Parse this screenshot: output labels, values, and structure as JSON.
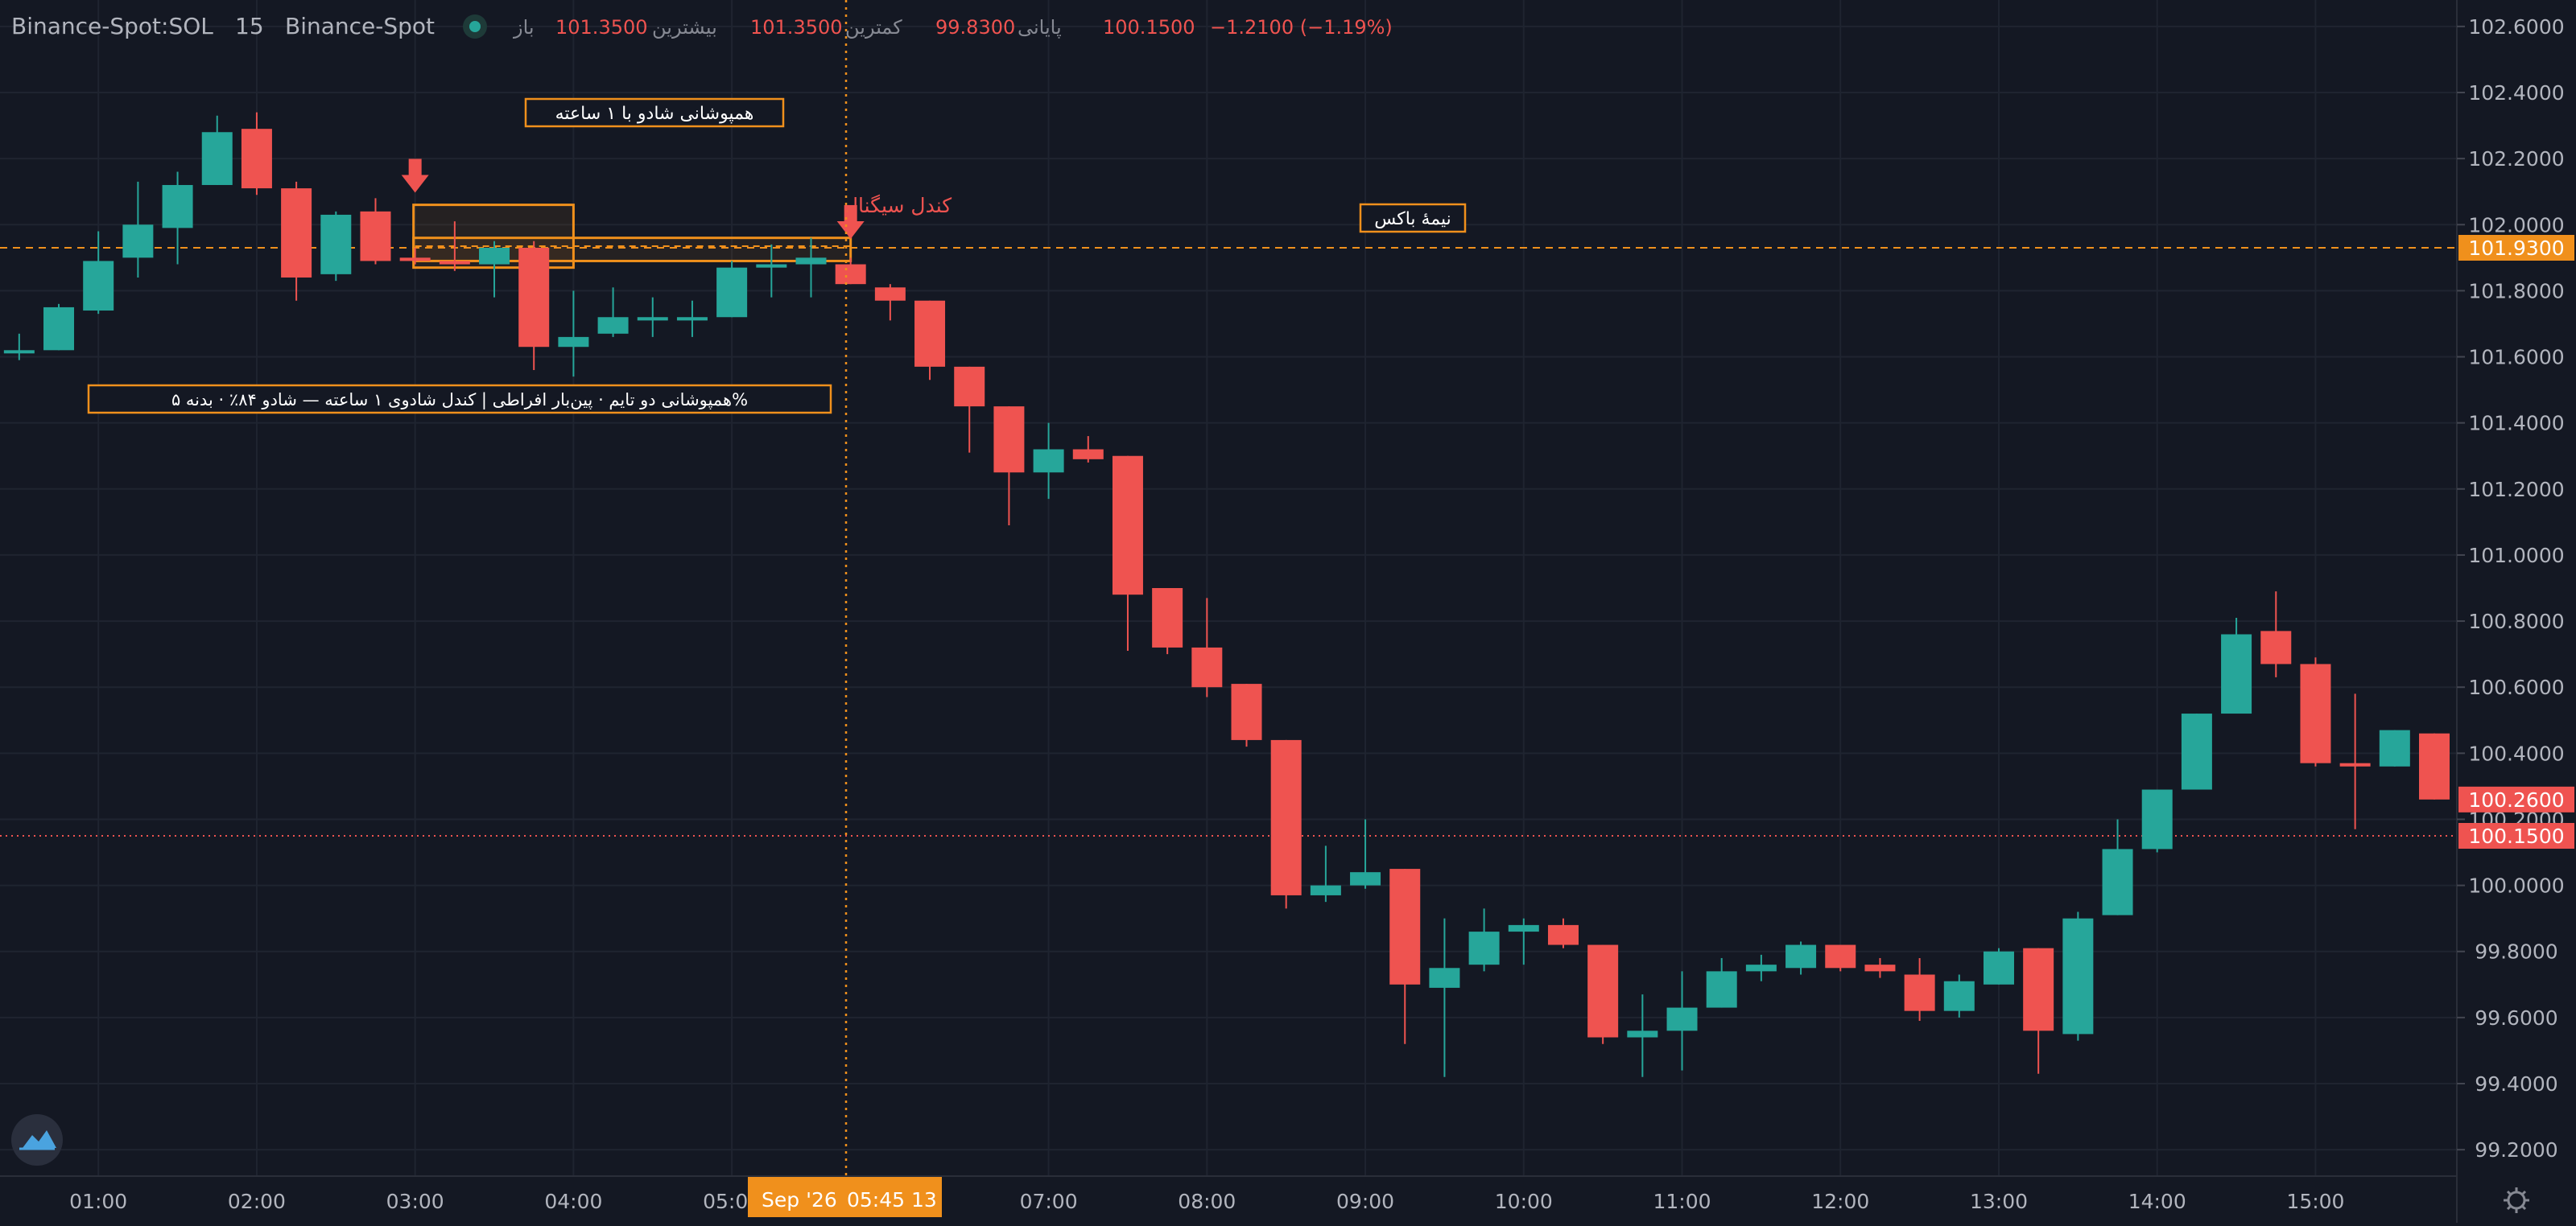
{
  "header": {
    "symbol": "Binance-Spot:SOL",
    "interval": "15",
    "exchange": "Binance-Spot",
    "open_label": "باز",
    "open_value": "101.3500",
    "high_label": "بیشترین",
    "high_value": "101.3500",
    "low_label": "کمترین",
    "low_value": "99.8300",
    "close_label": "پایانی",
    "close_value": "100.1500",
    "change": "−1.2100 (−1.19%)"
  },
  "colors": {
    "background": "#141823",
    "grid": "#1f2430",
    "text": "#b2b5be",
    "up": "#26a69a",
    "down": "#ef5350",
    "orange": "#f0901c",
    "annotation_text": "#ffffff"
  },
  "icons": {
    "logo": "cloud-logo-icon",
    "settings": "gear-icon",
    "signal_arrow": "down-arrow-icon",
    "status": "status-dot-icon"
  },
  "crosshair": {
    "time_label_date": "Sep '26",
    "time_label_time": "05:45 13",
    "time_position_hours": 5.75
  },
  "chart_data": {
    "type": "candlestick",
    "x_unit": "hours",
    "xlim": [
      0.45,
      15.75
    ],
    "ylim": [
      99.12,
      102.68
    ],
    "x_ticks": [
      {
        "label": "01:00",
        "x": 1
      },
      {
        "label": "02:00",
        "x": 2
      },
      {
        "label": "03:00",
        "x": 3
      },
      {
        "label": "04:00",
        "x": 4
      },
      {
        "label": "05:00",
        "x": 5
      },
      {
        "label": "07:00",
        "x": 7
      },
      {
        "label": "08:00",
        "x": 8
      },
      {
        "label": "09:00",
        "x": 9
      },
      {
        "label": "10:00",
        "x": 10
      },
      {
        "label": "11:00",
        "x": 11
      },
      {
        "label": "12:00",
        "x": 12
      },
      {
        "label": "13:00",
        "x": 13
      },
      {
        "label": "14:00",
        "x": 14
      },
      {
        "label": "15:00",
        "x": 15
      }
    ],
    "y_ticks": [
      "102.6000",
      "102.4000",
      "102.2000",
      "102.0000",
      "101.8000",
      "101.6000",
      "101.4000",
      "101.2000",
      "101.0000",
      "100.8000",
      "100.6000",
      "100.4000",
      "100.2000",
      "100.0000",
      "99.8000",
      "99.6000",
      "99.4000",
      "99.2000"
    ],
    "price_labels": [
      {
        "value": 101.93,
        "text": "101.9300",
        "color": "#f0901c",
        "line": "dashed"
      },
      {
        "value": 100.26,
        "text": "100.2600",
        "color": "#ef5350",
        "line": "none"
      },
      {
        "value": 100.15,
        "text": "100.1500",
        "color": "#ef5350",
        "line": "dotted"
      }
    ],
    "candles": [
      {
        "t": 0.5,
        "o": 101.62,
        "h": 101.67,
        "l": 101.59,
        "c": 101.62
      },
      {
        "t": 0.75,
        "o": 101.62,
        "h": 101.76,
        "l": 101.62,
        "c": 101.75
      },
      {
        "t": 1.0,
        "o": 101.74,
        "h": 101.98,
        "l": 101.73,
        "c": 101.89
      },
      {
        "t": 1.25,
        "o": 101.9,
        "h": 102.13,
        "l": 101.84,
        "c": 102.0
      },
      {
        "t": 1.5,
        "o": 101.99,
        "h": 102.16,
        "l": 101.88,
        "c": 102.12
      },
      {
        "t": 1.75,
        "o": 102.12,
        "h": 102.33,
        "l": 102.12,
        "c": 102.28
      },
      {
        "t": 2.0,
        "o": 102.29,
        "h": 102.34,
        "l": 102.09,
        "c": 102.11
      },
      {
        "t": 2.25,
        "o": 102.11,
        "h": 102.13,
        "l": 101.77,
        "c": 101.84
      },
      {
        "t": 2.5,
        "o": 101.85,
        "h": 102.04,
        "l": 101.83,
        "c": 102.03
      },
      {
        "t": 2.75,
        "o": 102.04,
        "h": 102.08,
        "l": 101.88,
        "c": 101.89
      },
      {
        "t": 3.0,
        "o": 101.9,
        "h": 101.93,
        "l": 101.88,
        "c": 101.89
      },
      {
        "t": 3.25,
        "o": 101.89,
        "h": 102.01,
        "l": 101.86,
        "c": 101.88
      },
      {
        "t": 3.5,
        "o": 101.88,
        "h": 101.95,
        "l": 101.78,
        "c": 101.93
      },
      {
        "t": 3.75,
        "o": 101.93,
        "h": 101.95,
        "l": 101.56,
        "c": 101.63
      },
      {
        "t": 4.0,
        "o": 101.63,
        "h": 101.8,
        "l": 101.54,
        "c": 101.66
      },
      {
        "t": 4.25,
        "o": 101.67,
        "h": 101.81,
        "l": 101.66,
        "c": 101.72
      },
      {
        "t": 4.5,
        "o": 101.71,
        "h": 101.78,
        "l": 101.66,
        "c": 101.72
      },
      {
        "t": 4.75,
        "o": 101.71,
        "h": 101.77,
        "l": 101.66,
        "c": 101.72
      },
      {
        "t": 5.0,
        "o": 101.72,
        "h": 101.89,
        "l": 101.72,
        "c": 101.87
      },
      {
        "t": 5.25,
        "o": 101.87,
        "h": 101.94,
        "l": 101.78,
        "c": 101.88
      },
      {
        "t": 5.5,
        "o": 101.88,
        "h": 101.96,
        "l": 101.78,
        "c": 101.9
      },
      {
        "t": 5.75,
        "o": 101.88,
        "h": 101.9,
        "l": 101.82,
        "c": 101.82
      },
      {
        "t": 6.0,
        "o": 101.81,
        "h": 101.82,
        "l": 101.71,
        "c": 101.77
      },
      {
        "t": 6.25,
        "o": 101.77,
        "h": 101.77,
        "l": 101.53,
        "c": 101.57
      },
      {
        "t": 6.5,
        "o": 101.57,
        "h": 101.57,
        "l": 101.31,
        "c": 101.45
      },
      {
        "t": 6.75,
        "o": 101.45,
        "h": 101.45,
        "l": 101.09,
        "c": 101.25
      },
      {
        "t": 7.0,
        "o": 101.25,
        "h": 101.4,
        "l": 101.17,
        "c": 101.32
      },
      {
        "t": 7.25,
        "o": 101.32,
        "h": 101.36,
        "l": 101.28,
        "c": 101.29
      },
      {
        "t": 7.5,
        "o": 101.3,
        "h": 101.3,
        "l": 100.71,
        "c": 100.88
      },
      {
        "t": 7.75,
        "o": 100.9,
        "h": 100.9,
        "l": 100.7,
        "c": 100.72
      },
      {
        "t": 8.0,
        "o": 100.72,
        "h": 100.87,
        "l": 100.57,
        "c": 100.6
      },
      {
        "t": 8.25,
        "o": 100.61,
        "h": 100.61,
        "l": 100.42,
        "c": 100.44
      },
      {
        "t": 8.5,
        "o": 100.44,
        "h": 100.44,
        "l": 99.93,
        "c": 99.97
      },
      {
        "t": 8.75,
        "o": 99.97,
        "h": 100.12,
        "l": 99.95,
        "c": 100.0
      },
      {
        "t": 9.0,
        "o": 100.0,
        "h": 100.2,
        "l": 99.99,
        "c": 100.04
      },
      {
        "t": 9.25,
        "o": 100.05,
        "h": 100.05,
        "l": 99.52,
        "c": 99.7
      },
      {
        "t": 9.5,
        "o": 99.69,
        "h": 99.9,
        "l": 99.42,
        "c": 99.75
      },
      {
        "t": 9.75,
        "o": 99.76,
        "h": 99.93,
        "l": 99.74,
        "c": 99.86
      },
      {
        "t": 10.0,
        "o": 99.86,
        "h": 99.9,
        "l": 99.76,
        "c": 99.88
      },
      {
        "t": 10.25,
        "o": 99.88,
        "h": 99.9,
        "l": 99.81,
        "c": 99.82
      },
      {
        "t": 10.5,
        "o": 99.82,
        "h": 99.82,
        "l": 99.52,
        "c": 99.54
      },
      {
        "t": 10.75,
        "o": 99.54,
        "h": 99.67,
        "l": 99.42,
        "c": 99.56
      },
      {
        "t": 11.0,
        "o": 99.56,
        "h": 99.74,
        "l": 99.44,
        "c": 99.63
      },
      {
        "t": 11.25,
        "o": 99.63,
        "h": 99.78,
        "l": 99.63,
        "c": 99.74
      },
      {
        "t": 11.5,
        "o": 99.74,
        "h": 99.79,
        "l": 99.71,
        "c": 99.76
      },
      {
        "t": 11.75,
        "o": 99.75,
        "h": 99.83,
        "l": 99.73,
        "c": 99.82
      },
      {
        "t": 12.0,
        "o": 99.82,
        "h": 99.82,
        "l": 99.74,
        "c": 99.75
      },
      {
        "t": 12.25,
        "o": 99.76,
        "h": 99.78,
        "l": 99.72,
        "c": 99.74
      },
      {
        "t": 12.5,
        "o": 99.73,
        "h": 99.78,
        "l": 99.59,
        "c": 99.62
      },
      {
        "t": 12.75,
        "o": 99.62,
        "h": 99.73,
        "l": 99.6,
        "c": 99.71
      },
      {
        "t": 13.0,
        "o": 99.7,
        "h": 99.81,
        "l": 99.7,
        "c": 99.8
      },
      {
        "t": 13.25,
        "o": 99.81,
        "h": 99.81,
        "l": 99.43,
        "c": 99.56
      },
      {
        "t": 13.5,
        "o": 99.55,
        "h": 99.92,
        "l": 99.53,
        "c": 99.9
      },
      {
        "t": 13.75,
        "o": 99.91,
        "h": 100.2,
        "l": 99.91,
        "c": 100.11
      },
      {
        "t": 14.0,
        "o": 100.11,
        "h": 100.29,
        "l": 100.1,
        "c": 100.29
      },
      {
        "t": 14.25,
        "o": 100.29,
        "h": 100.52,
        "l": 100.29,
        "c": 100.52
      },
      {
        "t": 14.5,
        "o": 100.52,
        "h": 100.81,
        "l": 100.52,
        "c": 100.76
      },
      {
        "t": 14.75,
        "o": 100.77,
        "h": 100.89,
        "l": 100.63,
        "c": 100.67
      },
      {
        "t": 15.0,
        "o": 100.67,
        "h": 100.69,
        "l": 100.36,
        "c": 100.37
      },
      {
        "t": 15.25,
        "o": 100.37,
        "h": 100.58,
        "l": 100.17,
        "c": 100.36
      },
      {
        "t": 15.5,
        "o": 100.36,
        "h": 100.47,
        "l": 100.36,
        "c": 100.47
      },
      {
        "t": 15.75,
        "o": 100.46,
        "h": 100.46,
        "l": 100.26,
        "c": 100.26
      }
    ]
  },
  "annotations": {
    "label_1h_shadow": "همپوشانی شادو با ۱ ساعته",
    "label_signal": "کندل سیگنال",
    "label_half_box": "نیمهٔ باکس",
    "label_bottom": "%همپوشانی دو تایم · پین‌بار افراطی | کندل شادوی ۱ ساعته — شادو ۸۴٪ · بدنه ۵",
    "box_outer": {
      "t1": 3.0,
      "t2": 4.0,
      "p1": 102.06,
      "p2": 101.87
    },
    "box_inner": {
      "t1": 3.0,
      "t2": 5.75,
      "p1": 101.96,
      "p2": 101.89
    },
    "half_line_price": 101.935,
    "signal_arrows": [
      {
        "t": 3.0,
        "price": 102.17
      },
      {
        "t": 5.75,
        "price": 102.03
      }
    ]
  }
}
